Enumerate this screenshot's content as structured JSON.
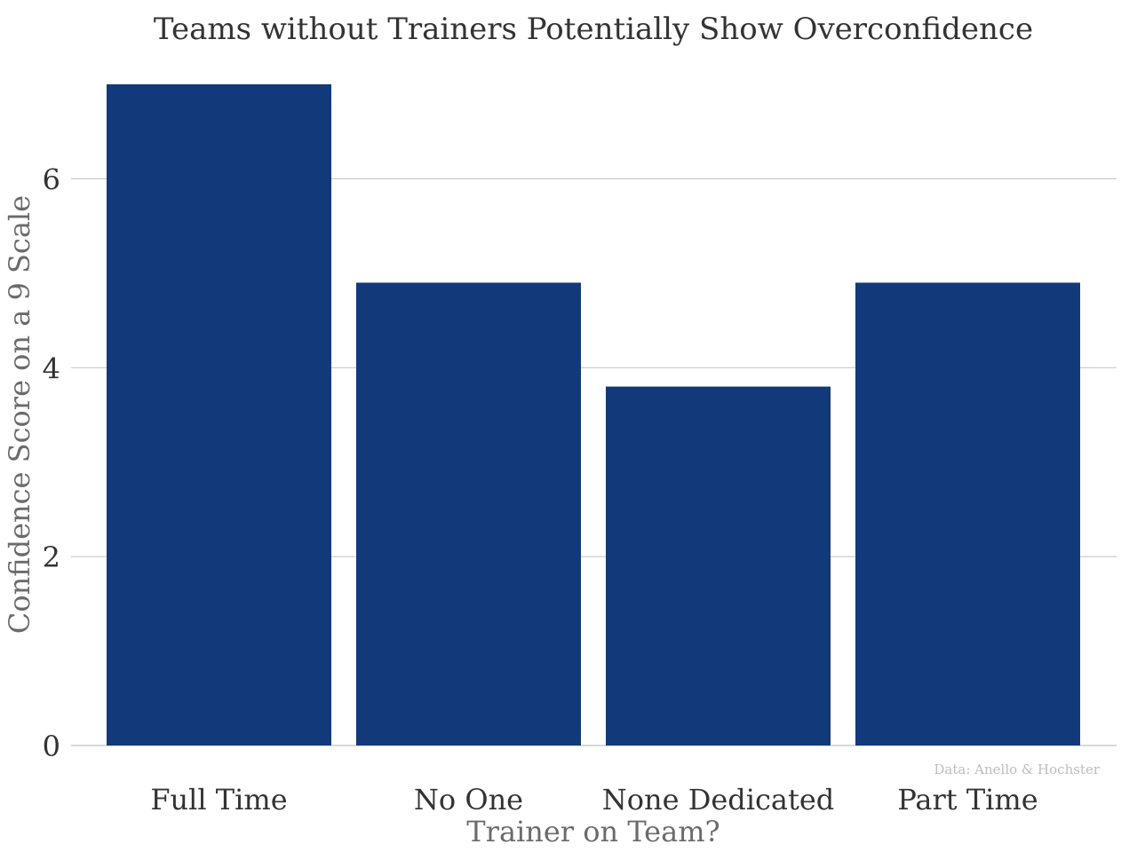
{
  "chart_data": {
    "type": "bar",
    "title": "Teams without Trainers Potentially Show Overconfidence",
    "xlabel": "Trainer on Team?",
    "ylabel": "Confidence Score on a 9 Scale",
    "categories": [
      "Full Time",
      "No One",
      "None Dedicated",
      "Part Time"
    ],
    "values": [
      7.0,
      4.9,
      3.8,
      4.9
    ],
    "ylim": [
      0,
      7.0
    ],
    "yticks": [
      0,
      2,
      4,
      6
    ],
    "ytick_labels": [
      "0",
      "2",
      "4",
      "6"
    ],
    "grid": true,
    "legend": "none",
    "source": "Data: Anello & Hochster",
    "bar_color": "#12397a"
  }
}
